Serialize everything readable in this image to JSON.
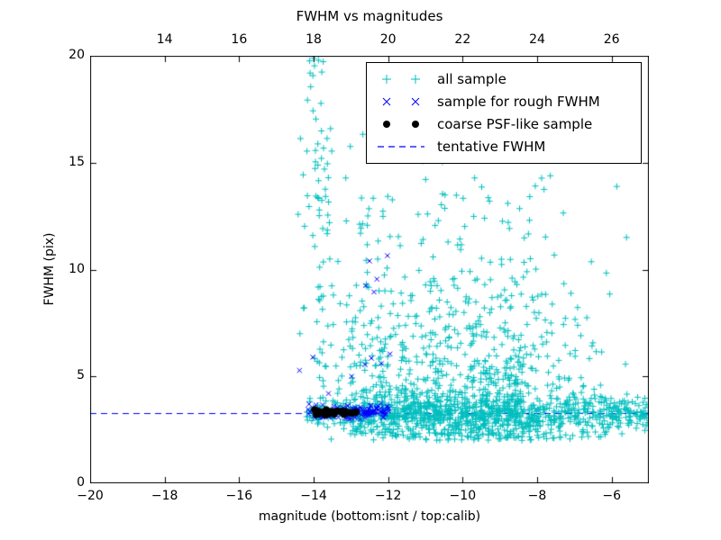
{
  "colors": {
    "all_sample": "#00bfbf",
    "rough_sample": "#0000ff",
    "coarse_sample": "#000000",
    "tentative_line": "#0000ff",
    "axis": "#000000",
    "background": "#ffffff"
  },
  "chart_data": {
    "type": "scatter",
    "title": "FWHM vs magnitudes",
    "xlabel": "magnitude (bottom:isnt / top:calib)",
    "ylabel": "FWHM (pix)",
    "xlim": [
      -20,
      -5
    ],
    "ylim": [
      0,
      20
    ],
    "top_xlim": [
      12,
      27
    ],
    "bottom_xticks": [
      -20,
      -18,
      -16,
      -14,
      -12,
      -10,
      -8,
      -6
    ],
    "top_xticks": [
      14,
      16,
      18,
      20,
      22,
      24,
      26
    ],
    "yticks": [
      0,
      5,
      10,
      15,
      20
    ],
    "grid": false,
    "legend_position": "upper right",
    "tentative_fwhm": 3.3,
    "series": [
      {
        "name": "all sample",
        "marker": "plus",
        "color": "#00bfbf",
        "seed": 42,
        "clusters": [
          {
            "n": 650,
            "x": {
              "dist": "uniform",
              "min": -12.9,
              "max": -5.02
            },
            "y": {
              "dist": "normal",
              "mean": 3.3,
              "sd": 0.42,
              "min": 1.7,
              "max": 5.4
            }
          },
          {
            "n": 900,
            "x": {
              "dist": "normal",
              "mean": -9.7,
              "sd": 1.55,
              "min": -13.8,
              "max": -5.02
            },
            "y": {
              "dist": "exp",
              "base": 2.0,
              "scale": 3.1,
              "max": 19.9
            }
          },
          {
            "n": 95,
            "x": {
              "dist": "normal",
              "mean": -13.88,
              "sd": 0.24,
              "min": -14.85,
              "max": -13.35
            },
            "y": {
              "dist": "uniform",
              "min": 2.6,
              "max": 19.9
            }
          },
          {
            "n": 150,
            "x": {
              "dist": "normal",
              "mean": -12.5,
              "sd": 0.45,
              "min": -13.35,
              "max": -11.5
            },
            "y": {
              "dist": "exp",
              "base": 2.3,
              "scale": 4.2,
              "max": 19.6
            }
          },
          {
            "n": 70,
            "x": {
              "dist": "uniform",
              "min": -14.2,
              "max": -12.9
            },
            "y": {
              "dist": "normal",
              "mean": 3.3,
              "sd": 0.3,
              "min": 2.6,
              "max": 4.2
            }
          }
        ]
      },
      {
        "name": "sample for rough FWHM",
        "marker": "x",
        "color": "#0000ff",
        "seed": 7,
        "clusters": [
          {
            "n": 150,
            "x": {
              "dist": "uniform",
              "min": -14.15,
              "max": -11.93
            },
            "y": {
              "dist": "normal",
              "mean": 3.33,
              "sd": 0.16,
              "min": 2.95,
              "max": 3.85
            }
          }
        ],
        "points": [
          [
            -14.38,
            5.28
          ],
          [
            -14.02,
            5.9
          ],
          [
            -13.6,
            4.2
          ],
          [
            -12.98,
            5.0
          ],
          [
            -12.62,
            5.55
          ],
          [
            -12.45,
            5.85
          ],
          [
            -12.18,
            5.6
          ],
          [
            -12.6,
            9.25
          ],
          [
            -12.5,
            10.4
          ],
          [
            -12.38,
            8.95
          ],
          [
            -12.3,
            9.55
          ],
          [
            -12.02,
            10.65
          ],
          [
            -11.95,
            6.05
          ]
        ]
      },
      {
        "name": "coarse PSF-like sample",
        "marker": "circle",
        "color": "#000000",
        "seed": 13,
        "clusters": [
          {
            "n": 34,
            "x": {
              "dist": "uniform",
              "min": -14.03,
              "max": -12.86
            },
            "y": {
              "dist": "normal",
              "mean": 3.3,
              "sd": 0.055,
              "min": 3.15,
              "max": 3.45
            }
          }
        ]
      },
      {
        "name": "tentative FWHM",
        "type": "hline",
        "linestyle": "dashed",
        "color": "#0000ff",
        "y": 3.3,
        "dash": [
          7,
          5
        ]
      }
    ]
  }
}
